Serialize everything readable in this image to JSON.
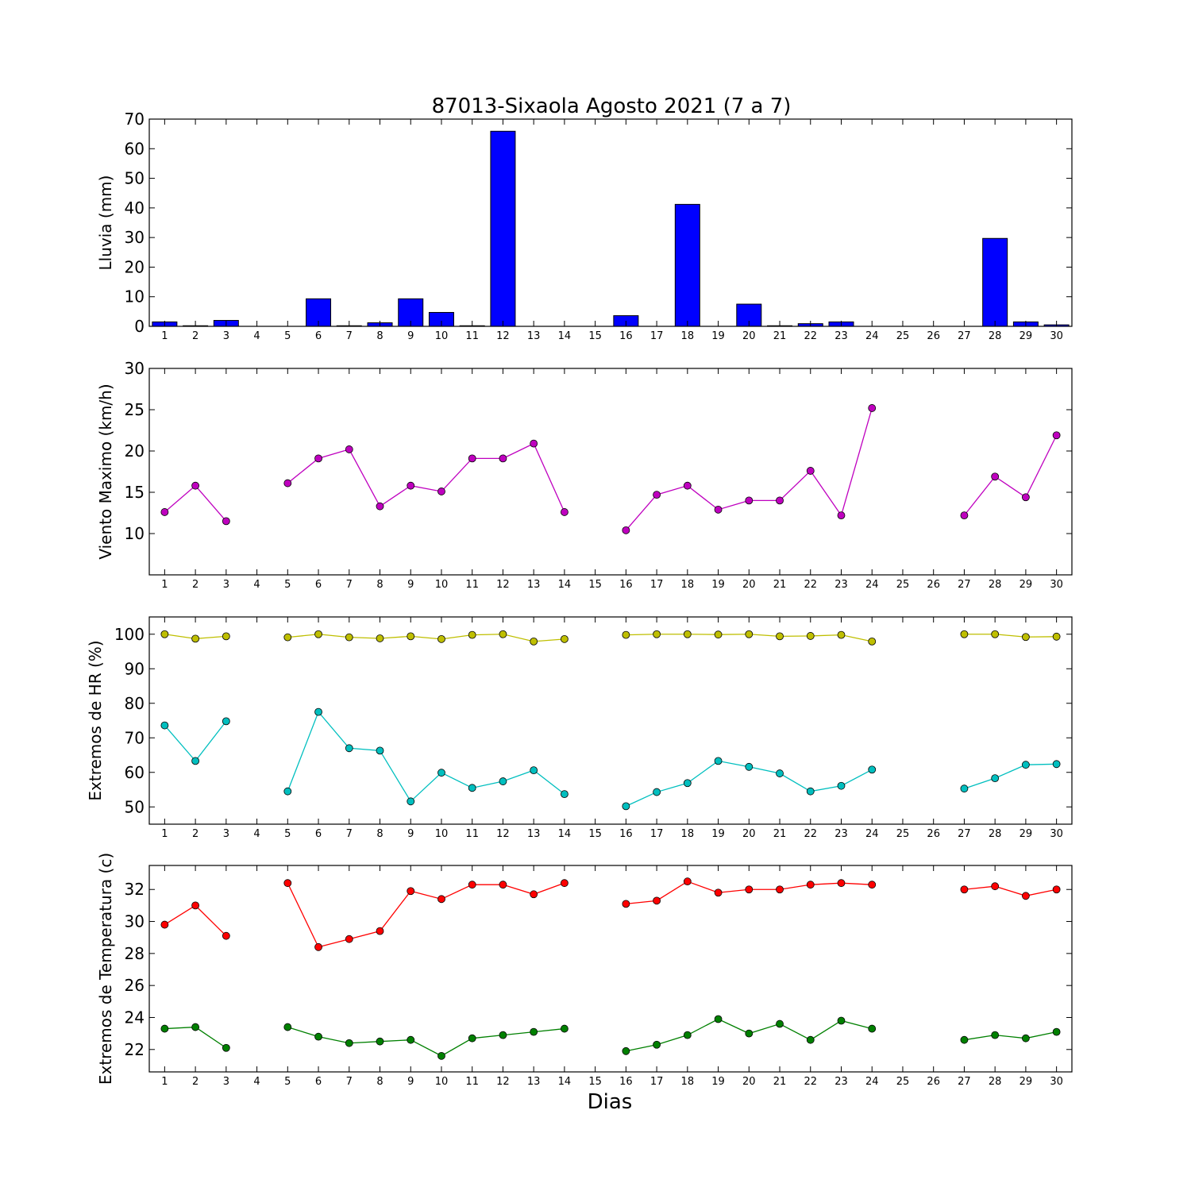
{
  "figure": {
    "title": "87013-Sixaola Agosto 2021  (7 a 7)",
    "xlabel": "Dias"
  },
  "chart_data": [
    {
      "type": "bar",
      "ylabel": "Lluvia (mm)",
      "ylim": [
        0,
        70
      ],
      "yticks": [
        0,
        10,
        20,
        30,
        40,
        50,
        60,
        70
      ],
      "xlim": [
        0.5,
        30.5
      ],
      "xticks": [
        1,
        2,
        3,
        4,
        5,
        6,
        7,
        8,
        9,
        10,
        11,
        12,
        13,
        14,
        15,
        16,
        17,
        18,
        19,
        20,
        21,
        22,
        23,
        24,
        25,
        26,
        27,
        28,
        29,
        30
      ],
      "color": "#0000ff",
      "series": [
        {
          "x": [
            1,
            2,
            3,
            4,
            5,
            6,
            7,
            8,
            9,
            10,
            11,
            12,
            13,
            14,
            15,
            16,
            17,
            18,
            19,
            20,
            21,
            22,
            23,
            24,
            25,
            26,
            27,
            28,
            29,
            30
          ],
          "values": [
            1.5,
            0.2,
            2.0,
            0,
            0,
            9.3,
            0.2,
            1.2,
            9.3,
            4.7,
            0.2,
            65.9,
            0,
            0,
            0,
            3.6,
            0,
            41.2,
            0,
            7.5,
            0.2,
            0.9,
            1.5,
            0,
            0,
            0,
            0,
            29.7,
            1.5,
            0.5
          ]
        }
      ]
    },
    {
      "type": "line",
      "ylabel": "Viento Maximo (km/h)",
      "ylim": [
        5,
        30
      ],
      "yticks": [
        10,
        15,
        20,
        25,
        30
      ],
      "xlim": [
        0.5,
        30.5
      ],
      "xticks": [
        1,
        2,
        3,
        4,
        5,
        6,
        7,
        8,
        9,
        10,
        11,
        12,
        13,
        14,
        15,
        16,
        17,
        18,
        19,
        20,
        21,
        22,
        23,
        24,
        25,
        26,
        27,
        28,
        29,
        30
      ],
      "series": [
        {
          "color": "#bf00bf",
          "x": [
            1,
            2,
            3,
            4,
            5,
            6,
            7,
            8,
            9,
            10,
            11,
            12,
            13,
            14,
            15,
            16,
            17,
            18,
            19,
            20,
            21,
            22,
            23,
            24,
            25,
            26,
            27,
            28,
            29,
            30
          ],
          "values": [
            12.6,
            15.8,
            11.5,
            null,
            16.1,
            19.1,
            20.2,
            13.3,
            15.8,
            15.1,
            19.1,
            19.1,
            20.9,
            12.6,
            null,
            10.4,
            14.7,
            15.8,
            12.9,
            14.0,
            14.0,
            17.6,
            12.2,
            25.2,
            null,
            null,
            12.2,
            16.9,
            14.4,
            21.9
          ]
        }
      ]
    },
    {
      "type": "line",
      "ylabel": "Extremos de HR (%)",
      "ylim": [
        45,
        105
      ],
      "yticks": [
        50,
        60,
        70,
        80,
        90,
        100
      ],
      "xlim": [
        0.5,
        30.5
      ],
      "xticks": [
        1,
        2,
        3,
        4,
        5,
        6,
        7,
        8,
        9,
        10,
        11,
        12,
        13,
        14,
        15,
        16,
        17,
        18,
        19,
        20,
        21,
        22,
        23,
        24,
        25,
        26,
        27,
        28,
        29,
        30
      ],
      "series": [
        {
          "color": "#bfbf00",
          "x": [
            1,
            2,
            3,
            4,
            5,
            6,
            7,
            8,
            9,
            10,
            11,
            12,
            13,
            14,
            15,
            16,
            17,
            18,
            19,
            20,
            21,
            22,
            23,
            24,
            25,
            26,
            27,
            28,
            29,
            30
          ],
          "values": [
            100,
            98.7,
            99.4,
            null,
            99.1,
            100,
            99.1,
            98.8,
            99.4,
            98.6,
            99.8,
            100,
            97.9,
            98.6,
            null,
            99.8,
            100,
            100,
            99.9,
            100,
            99.4,
            99.5,
            99.8,
            97.9,
            null,
            null,
            100,
            100,
            99.2,
            99.3
          ]
        },
        {
          "color": "#00bfbf",
          "x": [
            1,
            2,
            3,
            4,
            5,
            6,
            7,
            8,
            9,
            10,
            11,
            12,
            13,
            14,
            15,
            16,
            17,
            18,
            19,
            20,
            21,
            22,
            23,
            24,
            25,
            26,
            27,
            28,
            29,
            30
          ],
          "values": [
            73.6,
            63.3,
            74.8,
            null,
            54.5,
            77.5,
            67.0,
            66.3,
            51.6,
            59.9,
            55.5,
            57.4,
            60.6,
            53.7,
            null,
            50.2,
            54.3,
            56.9,
            63.3,
            61.6,
            59.7,
            54.5,
            56.1,
            60.8,
            null,
            null,
            55.3,
            58.3,
            62.2,
            62.4
          ]
        }
      ]
    },
    {
      "type": "line",
      "ylabel": "Extremos de Temperatura (c)",
      "ylim": [
        20.6,
        33.5
      ],
      "yticks": [
        22,
        24,
        26,
        28,
        30,
        32
      ],
      "xlim": [
        0.5,
        30.5
      ],
      "xticks": [
        1,
        2,
        3,
        4,
        5,
        6,
        7,
        8,
        9,
        10,
        11,
        12,
        13,
        14,
        15,
        16,
        17,
        18,
        19,
        20,
        21,
        22,
        23,
        24,
        25,
        26,
        27,
        28,
        29,
        30
      ],
      "series": [
        {
          "color": "#ff0000",
          "x": [
            1,
            2,
            3,
            4,
            5,
            6,
            7,
            8,
            9,
            10,
            11,
            12,
            13,
            14,
            15,
            16,
            17,
            18,
            19,
            20,
            21,
            22,
            23,
            24,
            25,
            26,
            27,
            28,
            29,
            30
          ],
          "values": [
            29.8,
            31.0,
            29.1,
            null,
            32.4,
            28.4,
            28.9,
            29.4,
            31.9,
            31.4,
            32.3,
            32.3,
            31.7,
            32.4,
            null,
            31.1,
            31.3,
            32.5,
            31.8,
            32.0,
            32.0,
            32.3,
            32.4,
            32.3,
            null,
            null,
            32.0,
            32.2,
            31.6,
            32.0
          ]
        },
        {
          "color": "#008000",
          "x": [
            1,
            2,
            3,
            4,
            5,
            6,
            7,
            8,
            9,
            10,
            11,
            12,
            13,
            14,
            15,
            16,
            17,
            18,
            19,
            20,
            21,
            22,
            23,
            24,
            25,
            26,
            27,
            28,
            29,
            30
          ],
          "values": [
            23.3,
            23.4,
            22.1,
            null,
            23.4,
            22.8,
            22.4,
            22.5,
            22.6,
            21.6,
            22.7,
            22.9,
            23.1,
            23.3,
            null,
            21.9,
            22.3,
            22.9,
            23.9,
            23.0,
            23.6,
            22.6,
            23.8,
            23.3,
            null,
            null,
            22.6,
            22.9,
            22.7,
            23.1
          ]
        }
      ]
    }
  ]
}
